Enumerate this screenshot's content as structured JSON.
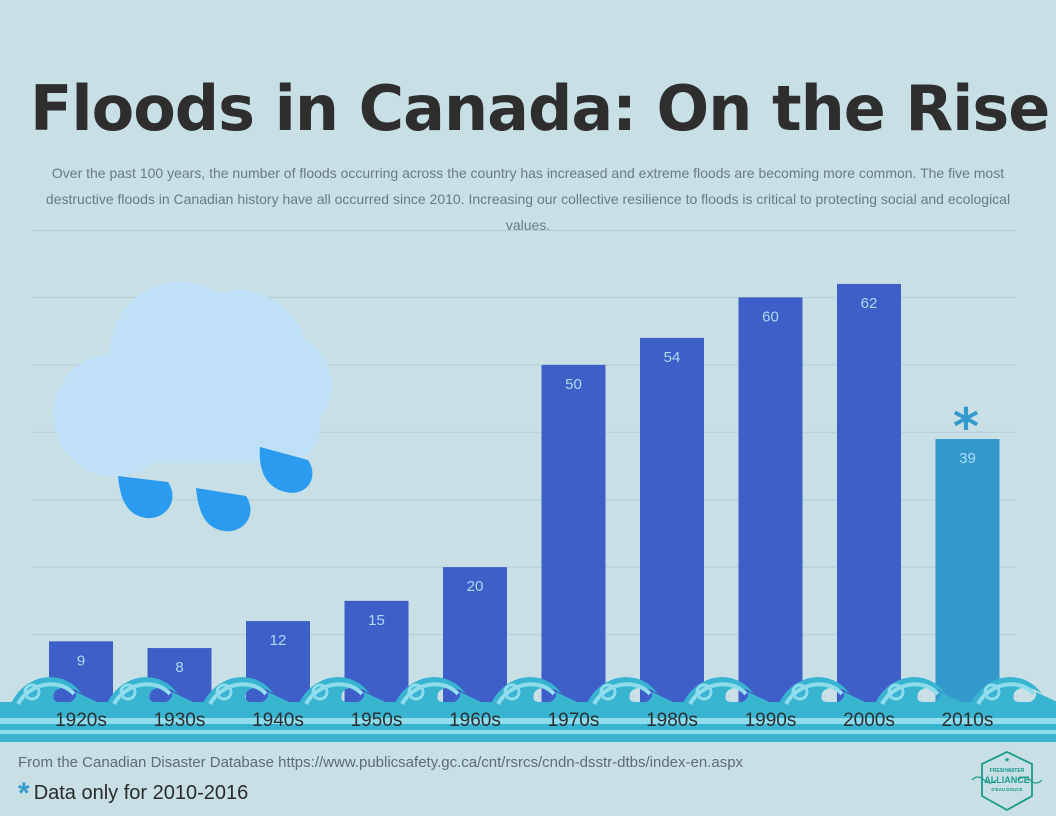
{
  "header": {
    "title": "Floods in Canada: On the Rise",
    "subtitle": "Over the past 100 years, the number of floods occurring across the country has increased and extreme floods are becoming more common. The five most destructive floods in Canadian history have all occurred since 2010.  Increasing our collective resilience to floods is critical to protecting social and ecological values."
  },
  "colors": {
    "bar": "#3f5fc8",
    "bar_partial": "#3399cc",
    "value_label": "#a9dcf3",
    "cloud": "#bfe0f7",
    "raindrop": "#2a9bef",
    "wave_dark": "#38b3d0",
    "wave_light": "#8fdced",
    "gridline": "#b2cdd6"
  },
  "chart_data": {
    "type": "bar",
    "categories": [
      "1920s",
      "1930s",
      "1940s",
      "1950s",
      "1960s",
      "1970s",
      "1980s",
      "1990s",
      "2000s",
      "2010s"
    ],
    "values": [
      9,
      8,
      12,
      15,
      20,
      50,
      54,
      60,
      62,
      39
    ],
    "highlighted": [
      "2010s"
    ],
    "ylim": [
      0,
      70
    ],
    "grid": true,
    "xlabel": "",
    "ylabel": ""
  },
  "annotations": {
    "partial_marker": "*",
    "footnote": "Data only for 2010-2016"
  },
  "footer": {
    "source": "From the Canadian Disaster Database https://www.publicsafety.gc.ca/cnt/rsrcs/cndn-dsstr-dtbs/index-en.aspx"
  },
  "logo": {
    "top": "FRESHWATER",
    "main": "ALLIANCE",
    "bottom": "D'EAU DOUCE"
  }
}
